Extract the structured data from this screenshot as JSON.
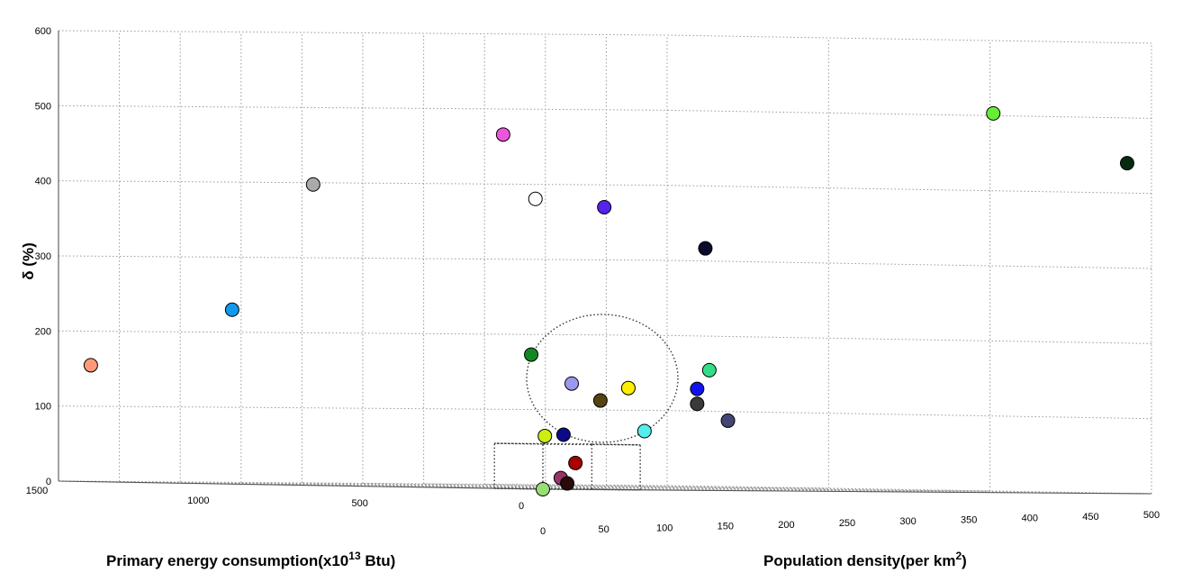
{
  "chart_data": {
    "type": "scatter",
    "axes": {
      "x": {
        "label_text": "Primary energy consumption(x10",
        "label_sup": "13",
        "label_unit": " Btu)",
        "ticks": [
          "1500",
          "1000",
          "500",
          "0"
        ]
      },
      "y": {
        "label_text": "Population density(per km",
        "label_sup": "2",
        "label_unit": ")",
        "ticks": [
          "0",
          "50",
          "100",
          "150",
          "200",
          "250",
          "300",
          "350",
          "400",
          "450",
          "500"
        ]
      },
      "z": {
        "label": "δ (%)",
        "ticks": [
          "0",
          "100",
          "200",
          "300",
          "400",
          "500",
          "600"
        ]
      }
    },
    "grid": true,
    "points": [
      {
        "color": "#66ee33",
        "energy": 0,
        "density": 370,
        "delta": 505
      },
      {
        "color": "#062a10",
        "energy": 0,
        "density": 480,
        "delta": 440
      },
      {
        "color": "#ee55dd",
        "energy": 500,
        "density": 100,
        "delta": 470
      },
      {
        "color": "#aaaaaa",
        "energy": 900,
        "density": 50,
        "delta": 400
      },
      {
        "color": "#ffffff",
        "energy": 400,
        "density": 100,
        "delta": 385
      },
      {
        "color": "#5522ee",
        "energy": 300,
        "density": 130,
        "delta": 375
      },
      {
        "color": "#0a0a2a",
        "energy": 100,
        "density": 160,
        "delta": 322
      },
      {
        "color": "#1199ee",
        "energy": 1000,
        "density": 10,
        "delta": 232
      },
      {
        "color": "#ff9977",
        "energy": 1400,
        "density": 0,
        "delta": 155
      },
      {
        "color": "#118822",
        "energy": 300,
        "density": 70,
        "delta": 178
      },
      {
        "color": "#33dd88",
        "energy": 50,
        "density": 150,
        "delta": 160
      },
      {
        "color": "#9999ee",
        "energy": 250,
        "density": 90,
        "delta": 140
      },
      {
        "color": "#ffee00",
        "energy": 150,
        "density": 110,
        "delta": 135
      },
      {
        "color": "#1111ee",
        "energy": 50,
        "density": 140,
        "delta": 135
      },
      {
        "color": "#554411",
        "energy": 180,
        "density": 95,
        "delta": 118
      },
      {
        "color": "#3a3a3a",
        "energy": 50,
        "density": 140,
        "delta": 115
      },
      {
        "color": "#444477",
        "energy": 30,
        "density": 160,
        "delta": 93
      },
      {
        "color": "#55eeee",
        "energy": 100,
        "density": 110,
        "delta": 78
      },
      {
        "color": "#0a0a88",
        "energy": 200,
        "density": 70,
        "delta": 72
      },
      {
        "color": "#ccee11",
        "energy": 220,
        "density": 60,
        "delta": 70
      },
      {
        "color": "#aa0000",
        "energy": 50,
        "density": 40,
        "delta": 35
      },
      {
        "color": "#993366",
        "energy": 20,
        "density": 20,
        "delta": 15
      },
      {
        "color": "#2a0a0a",
        "energy": 0,
        "density": 20,
        "delta": 8
      },
      {
        "color": "#99dd77",
        "energy": 0,
        "density": 0,
        "delta": 0
      }
    ]
  }
}
